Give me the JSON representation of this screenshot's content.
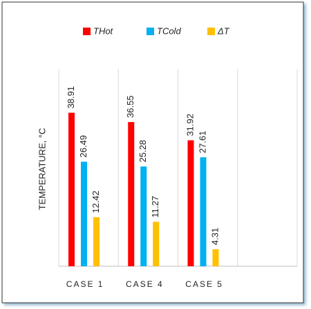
{
  "chart_data": {
    "type": "bar",
    "y_label": "TEMPERATURE, °C",
    "categories": [
      "CASE 1",
      "CASE 4",
      "CASE 5",
      null
    ],
    "series": [
      {
        "name": "THot",
        "color": "#ff0000",
        "values": [
          38.91,
          36.55,
          31.92,
          null
        ]
      },
      {
        "name": "TCold",
        "color": "#00b0f0",
        "values": [
          26.49,
          25.28,
          27.61,
          null
        ]
      },
      {
        "name": "ΔT",
        "color": "#ffc000",
        "values": [
          12.42,
          11.27,
          4.31,
          null
        ]
      }
    ],
    "ylim": [
      0,
      50
    ],
    "grid": true
  }
}
